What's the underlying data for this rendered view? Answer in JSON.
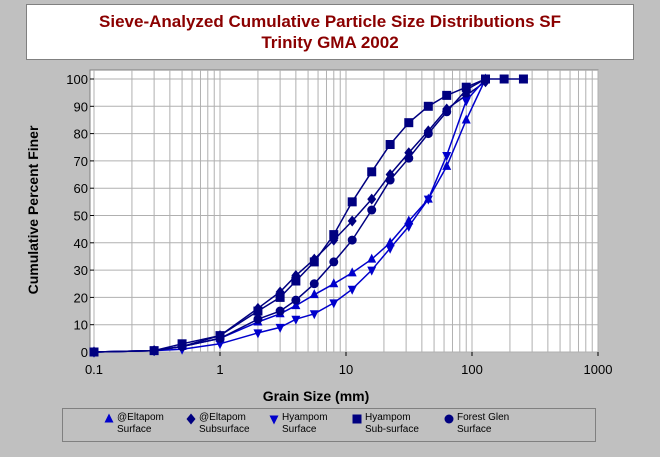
{
  "chart_data": {
    "type": "line",
    "title_line1": "Sieve-Analyzed Cumulative Particle Size Distributions SF",
    "title_line2": "Trinity GMA 2002",
    "xlabel": "Grain Size (mm)",
    "ylabel": "Cumulative Percent Finer",
    "x_scale": "log",
    "xlim": [
      0.1,
      1000
    ],
    "ylim": [
      0,
      100
    ],
    "x_ticks": [
      "0.1",
      "1",
      "10",
      "100",
      "1000"
    ],
    "y_ticks": [
      "0",
      "10",
      "20",
      "30",
      "40",
      "50",
      "60",
      "70",
      "80",
      "90",
      "100"
    ],
    "grid": true,
    "series": [
      {
        "name_line1": "@Eltapom",
        "name_line2": "Surface",
        "marker": "triangle-up",
        "color": "#0000cc",
        "x": [
          0.1,
          0.3,
          0.5,
          1,
          2,
          3,
          4,
          5.6,
          8,
          11.2,
          16,
          22.4,
          31.5,
          45,
          63,
          90,
          128
        ],
        "y": [
          0,
          0.5,
          2,
          5,
          11,
          14,
          17,
          21,
          25,
          29,
          34,
          40,
          48,
          56,
          68,
          85,
          100
        ]
      },
      {
        "name_line1": "@Eltapom",
        "name_line2": "Subsurface",
        "marker": "diamond",
        "color": "#000080",
        "x": [
          0.1,
          0.3,
          0.5,
          1,
          2,
          3,
          4,
          5.6,
          8,
          11.2,
          16,
          22.4,
          31.5,
          45,
          63,
          90,
          128
        ],
        "y": [
          0,
          0.5,
          2,
          6,
          16,
          22,
          28,
          34,
          41,
          48,
          56,
          65,
          73,
          81,
          89,
          94,
          99
        ]
      },
      {
        "name_line1": "Hyampom",
        "name_line2": "Surface",
        "marker": "triangle-down",
        "color": "#0000cc",
        "x": [
          0.1,
          0.3,
          0.5,
          1,
          2,
          3,
          4,
          5.6,
          8,
          11.2,
          16,
          22.4,
          31.5,
          45,
          63,
          90,
          128
        ],
        "y": [
          0,
          0.5,
          1,
          3,
          7,
          9,
          12,
          14,
          18,
          23,
          30,
          38,
          46,
          56,
          72,
          92,
          100
        ]
      },
      {
        "name_line1": "Hyampom",
        "name_line2": "Sub-surface",
        "marker": "square",
        "color": "#000080",
        "x": [
          0.1,
          0.3,
          0.5,
          1,
          2,
          3,
          4,
          5.6,
          8,
          11.2,
          16,
          22.4,
          31.5,
          45,
          63,
          90,
          128,
          180,
          256
        ],
        "y": [
          0,
          0.5,
          3,
          6,
          15,
          20,
          26,
          33,
          43,
          55,
          66,
          76,
          84,
          90,
          94,
          97,
          100,
          100,
          100
        ]
      },
      {
        "name_line1": "Forest Glen",
        "name_line2": "Surface",
        "marker": "circle",
        "color": "#000080",
        "x": [
          0.1,
          0.3,
          0.5,
          1,
          2,
          3,
          4,
          5.6,
          8,
          11.2,
          16,
          22.4,
          31.5,
          45,
          63,
          90,
          128
        ],
        "y": [
          0,
          0.5,
          2,
          5,
          12,
          15,
          19,
          25,
          33,
          41,
          52,
          63,
          71,
          80,
          88,
          96,
          100
        ]
      }
    ]
  }
}
